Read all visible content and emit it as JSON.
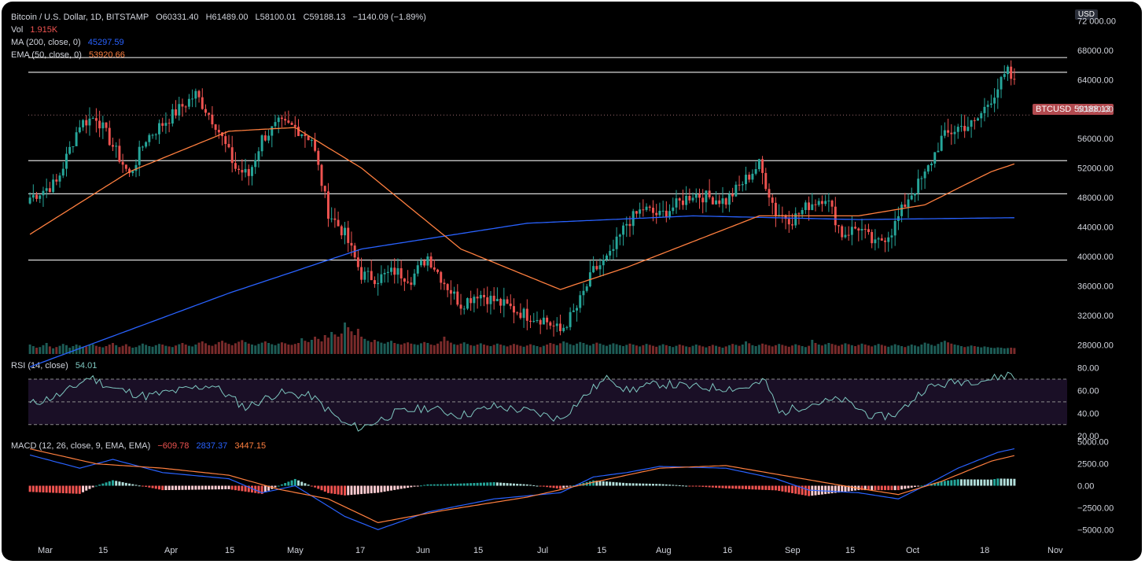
{
  "header": {
    "symbol": "Bitcoin / U.S. Dollar, 1D, BITSTAMP",
    "open": "O60331.40",
    "high": "H61489.00",
    "low": "L58100.01",
    "close": "C59188.13",
    "change": "−1140.09 (−1.89%)",
    "vol_label": "Vol",
    "vol_value": "1.915K",
    "ma_label": "MA (200, close, 0)",
    "ma_value": "45297.59",
    "ema_label": "EMA (50, close, 0)",
    "ema_value": "53920.66",
    "currency": "USD"
  },
  "rsi_panel": {
    "label": "RSI (14, close)",
    "value": "54.01"
  },
  "macd_panel": {
    "label": "MACD (12, 26, close, 9, EMA, EMA)",
    "hist_value": "−609.78",
    "macd_value": "2837.37",
    "signal_value": "3447.15"
  },
  "price_tag": {
    "symbol": "BTCUSD",
    "value": "59188.13"
  },
  "colors": {
    "up": "#26a69a",
    "down": "#ef5350",
    "ma200": "#2962ff",
    "ema50": "#ff7f3f",
    "rsi": "#7ec7c0",
    "price_tag": "#b24a4f"
  },
  "chart_data": {
    "type": "candlestick",
    "timeframe": "1D",
    "x_ticks": [
      "Mar",
      "15",
      "Apr",
      "15",
      "May",
      "17",
      "Jun",
      "15",
      "Jul",
      "15",
      "Aug",
      "16",
      "Sep",
      "15",
      "Oct",
      "18",
      "Nov"
    ],
    "price_axis": {
      "ticks": [
        "72 000.00",
        "68000.00",
        "64000.00",
        "60000.00",
        "56000.00",
        "52000.00",
        "48000.00",
        "44000.00",
        "40000.00",
        "36000.00",
        "32000.00",
        "28000.00"
      ],
      "ylim": [
        26000,
        73000
      ]
    },
    "horizontal_levels": [
      67000,
      65000,
      53000,
      48500,
      39500
    ],
    "price_keyframes": [
      [
        0,
        48000
      ],
      [
        8,
        50000
      ],
      [
        15,
        58000
      ],
      [
        20,
        59000
      ],
      [
        25,
        55000
      ],
      [
        30,
        51000
      ],
      [
        35,
        56000
      ],
      [
        40,
        58000
      ],
      [
        45,
        60000
      ],
      [
        50,
        62000
      ],
      [
        56,
        58000
      ],
      [
        62,
        52000
      ],
      [
        66,
        51000
      ],
      [
        70,
        56000
      ],
      [
        75,
        58000
      ],
      [
        80,
        57500
      ],
      [
        85,
        56000
      ],
      [
        90,
        46000
      ],
      [
        95,
        43000
      ],
      [
        100,
        37500
      ],
      [
        105,
        37000
      ],
      [
        110,
        38000
      ],
      [
        115,
        37000
      ],
      [
        120,
        40000
      ],
      [
        125,
        36500
      ],
      [
        130,
        33500
      ],
      [
        135,
        35000
      ],
      [
        140,
        34000
      ],
      [
        145,
        33000
      ],
      [
        150,
        32000
      ],
      [
        155,
        31500
      ],
      [
        160,
        29800
      ],
      [
        165,
        33000
      ],
      [
        170,
        38000
      ],
      [
        175,
        40000
      ],
      [
        180,
        44500
      ],
      [
        185,
        46500
      ],
      [
        190,
        45500
      ],
      [
        195,
        47000
      ],
      [
        200,
        48500
      ],
      [
        205,
        48000
      ],
      [
        210,
        47500
      ],
      [
        215,
        50000
      ],
      [
        220,
        52500
      ],
      [
        225,
        46000
      ],
      [
        230,
        45000
      ],
      [
        235,
        47000
      ],
      [
        240,
        48200
      ],
      [
        245,
        43000
      ],
      [
        250,
        44000
      ],
      [
        255,
        41500
      ],
      [
        260,
        43500
      ],
      [
        265,
        48000
      ],
      [
        270,
        51000
      ],
      [
        275,
        56000
      ],
      [
        280,
        57500
      ],
      [
        285,
        58000
      ],
      [
        290,
        61500
      ],
      [
        295,
        65000
      ],
      [
        300,
        61000
      ],
      [
        303,
        62000
      ],
      [
        306,
        59188
      ]
    ],
    "ma200_keyframes": [
      [
        0,
        25000
      ],
      [
        60,
        35000
      ],
      [
        100,
        41000
      ],
      [
        150,
        44500
      ],
      [
        200,
        45500
      ],
      [
        250,
        45000
      ],
      [
        306,
        45297
      ]
    ],
    "ema50_keyframes": [
      [
        0,
        43000
      ],
      [
        30,
        51500
      ],
      [
        60,
        57000
      ],
      [
        80,
        57500
      ],
      [
        100,
        52000
      ],
      [
        130,
        41000
      ],
      [
        160,
        35500
      ],
      [
        180,
        38500
      ],
      [
        200,
        42000
      ],
      [
        220,
        45500
      ],
      [
        250,
        45500
      ],
      [
        270,
        47000
      ],
      [
        290,
        51500
      ],
      [
        306,
        53920
      ]
    ],
    "rsi_axis": {
      "ticks": [
        "80.00",
        "60.00",
        "40.00",
        "20.00"
      ],
      "ylim": [
        18,
        86
      ],
      "bands": [
        70,
        50,
        30
      ]
    },
    "rsi_keyframes": [
      [
        0,
        48
      ],
      [
        10,
        57
      ],
      [
        18,
        72
      ],
      [
        25,
        62
      ],
      [
        35,
        55
      ],
      [
        45,
        60
      ],
      [
        55,
        65
      ],
      [
        65,
        45
      ],
      [
        75,
        58
      ],
      [
        85,
        55
      ],
      [
        95,
        30
      ],
      [
        100,
        27
      ],
      [
        110,
        40
      ],
      [
        120,
        45
      ],
      [
        130,
        38
      ],
      [
        140,
        46
      ],
      [
        150,
        42
      ],
      [
        160,
        35
      ],
      [
        170,
        62
      ],
      [
        175,
        72
      ],
      [
        180,
        60
      ],
      [
        190,
        66
      ],
      [
        200,
        63
      ],
      [
        215,
        62
      ],
      [
        222,
        68
      ],
      [
        226,
        40
      ],
      [
        235,
        48
      ],
      [
        245,
        52
      ],
      [
        255,
        36
      ],
      [
        262,
        40
      ],
      [
        270,
        62
      ],
      [
        280,
        68
      ],
      [
        290,
        70
      ],
      [
        296,
        75
      ],
      [
        300,
        60
      ],
      [
        306,
        54
      ]
    ],
    "macd_axis": {
      "ticks": [
        "5000.00",
        "2500.00",
        "0.00",
        "−2500.00",
        "−5000.00"
      ],
      "ylim": [
        -5600,
        5600
      ]
    },
    "macd_keyframes": [
      [
        0,
        3500
      ],
      [
        15,
        2000
      ],
      [
        25,
        3000
      ],
      [
        40,
        1500
      ],
      [
        60,
        800
      ],
      [
        70,
        -800
      ],
      [
        80,
        0
      ],
      [
        95,
        -3500
      ],
      [
        105,
        -5000
      ],
      [
        120,
        -3000
      ],
      [
        140,
        -1500
      ],
      [
        160,
        -800
      ],
      [
        170,
        1000
      ],
      [
        180,
        1500
      ],
      [
        190,
        2200
      ],
      [
        210,
        2000
      ],
      [
        225,
        800
      ],
      [
        235,
        -500
      ],
      [
        250,
        -800
      ],
      [
        262,
        -1500
      ],
      [
        270,
        0
      ],
      [
        280,
        2000
      ],
      [
        292,
        3800
      ],
      [
        298,
        4300
      ],
      [
        306,
        2837
      ]
    ],
    "signal_keyframes": [
      [
        0,
        4200
      ],
      [
        20,
        2500
      ],
      [
        40,
        2000
      ],
      [
        60,
        1200
      ],
      [
        75,
        -400
      ],
      [
        90,
        -1500
      ],
      [
        105,
        -4200
      ],
      [
        125,
        -2800
      ],
      [
        150,
        -1300
      ],
      [
        170,
        400
      ],
      [
        190,
        2000
      ],
      [
        210,
        2300
      ],
      [
        230,
        1000
      ],
      [
        250,
        -300
      ],
      [
        262,
        -1000
      ],
      [
        275,
        500
      ],
      [
        290,
        2800
      ],
      [
        300,
        3700
      ],
      [
        306,
        3447
      ]
    ],
    "volume_axis": {
      "ylim": [
        0,
        1
      ]
    },
    "volume_series": [
      0.3,
      0.25,
      0.2,
      0.22,
      0.28,
      0.35,
      0.24,
      0.18,
      0.22,
      0.26,
      0.32,
      0.28,
      0.2,
      0.25,
      0.3,
      0.27,
      0.22,
      0.24,
      0.29,
      0.31,
      0.26,
      0.23,
      0.21,
      0.25,
      0.3,
      0.35,
      0.28,
      0.22,
      0.26,
      0.31,
      0.24,
      0.2,
      0.22,
      0.27,
      0.33,
      0.29,
      0.25,
      0.23,
      0.28,
      0.32,
      0.3,
      0.26,
      0.24,
      0.22,
      0.27,
      0.31,
      0.35,
      0.3,
      0.26,
      0.24,
      0.3,
      0.36,
      0.4,
      0.34,
      0.28,
      0.26,
      0.31,
      0.38,
      0.42,
      0.36,
      0.32,
      0.28,
      0.34,
      0.39,
      0.44,
      0.38,
      0.33,
      0.3,
      0.27,
      0.32,
      0.36,
      0.4,
      0.35,
      0.31,
      0.28,
      0.33,
      0.37,
      0.34,
      0.3,
      0.29,
      0.32,
      0.35,
      0.5,
      0.42,
      0.38,
      0.45,
      0.55,
      0.48,
      0.4,
      0.6,
      0.52,
      0.7,
      0.62,
      0.55,
      0.65,
      1.0,
      0.85,
      0.72,
      0.6,
      0.8,
      0.55,
      0.48,
      0.42,
      0.38,
      0.45,
      0.4,
      0.36,
      0.33,
      0.38,
      0.42,
      0.35,
      0.32,
      0.3,
      0.34,
      0.37,
      0.33,
      0.31,
      0.29,
      0.34,
      0.38,
      0.35,
      0.3,
      0.28,
      0.33,
      0.4,
      0.55,
      0.42,
      0.36,
      0.31,
      0.29,
      0.33,
      0.37,
      0.32,
      0.28,
      0.26,
      0.3,
      0.34,
      0.3,
      0.27,
      0.25,
      0.29,
      0.33,
      0.3,
      0.27,
      0.24,
      0.28,
      0.32,
      0.29,
      0.26,
      0.23,
      0.27,
      0.31,
      0.28,
      0.25,
      0.22,
      0.26,
      0.3,
      0.35,
      0.32,
      0.28,
      0.34,
      0.4,
      0.36,
      0.31,
      0.28,
      0.33,
      0.38,
      0.35,
      0.3,
      0.27,
      0.32,
      0.36,
      0.33,
      0.29,
      0.26,
      0.3,
      0.34,
      0.31,
      0.28,
      0.25,
      0.29,
      0.33,
      0.3,
      0.27,
      0.24,
      0.28,
      0.32,
      0.29,
      0.26,
      0.23,
      0.27,
      0.31,
      0.28,
      0.25,
      0.22,
      0.26,
      0.3,
      0.27,
      0.24,
      0.22,
      0.26,
      0.3,
      0.27,
      0.24,
      0.21,
      0.25,
      0.29,
      0.26,
      0.23,
      0.2,
      0.24,
      0.28,
      0.32,
      0.29,
      0.26,
      0.3,
      0.4,
      0.34,
      0.28,
      0.25,
      0.29,
      0.33,
      0.3,
      0.27,
      0.24,
      0.28,
      0.32,
      0.29,
      0.26,
      0.23,
      0.27,
      0.31,
      0.28,
      0.25,
      0.22,
      0.26,
      0.45,
      0.35,
      0.3,
      0.27,
      0.31,
      0.35,
      0.32,
      0.29,
      0.26,
      0.3,
      0.34,
      0.31,
      0.28,
      0.25,
      0.29,
      0.33,
      0.3,
      0.27,
      0.24,
      0.28,
      0.32,
      0.29,
      0.26,
      0.23,
      0.27,
      0.31,
      0.28,
      0.25,
      0.22,
      0.26,
      0.3,
      0.27,
      0.24,
      0.3,
      0.36,
      0.33,
      0.29,
      0.26,
      0.32,
      0.38,
      0.42,
      0.37,
      0.33,
      0.3,
      0.28,
      0.25,
      0.22,
      0.24,
      0.27,
      0.25,
      0.23,
      0.21,
      0.24,
      0.22,
      0.2,
      0.19,
      0.21,
      0.2,
      0.18,
      0.19,
      0.2,
      0.19
    ]
  }
}
